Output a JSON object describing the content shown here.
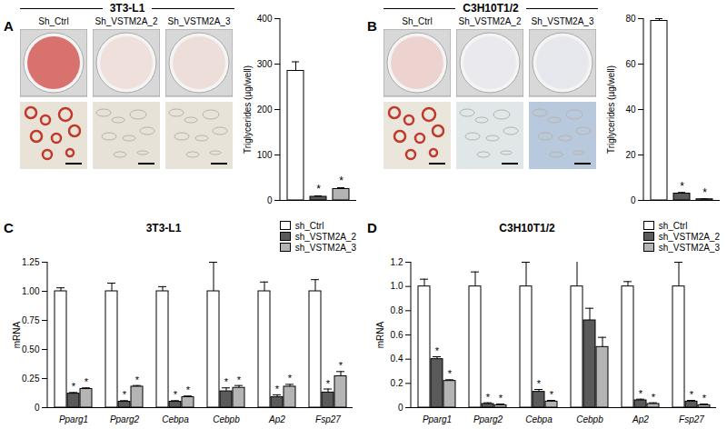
{
  "chart_data": [
    {
      "type": "bar",
      "panel_label": "A",
      "title": "3T3-L1",
      "image_labels": [
        "Sh_Ctrl",
        "Sh_VSTM2A_2",
        "Sh_VSTM2A_3"
      ],
      "y_label": "Triglycerides (µg/well)",
      "categories": [
        null,
        null,
        null
      ],
      "values": [
        285,
        8,
        25
      ],
      "errors": [
        20,
        2,
        3
      ],
      "annotations": [
        null,
        "*",
        "*"
      ],
      "colors": [
        "#ffffff",
        "#5a5a5a",
        "#b4b4b4"
      ],
      "ylim": [
        0,
        400
      ],
      "yticks": [
        0,
        100,
        200,
        300,
        400
      ],
      "tick_labels": "y"
    },
    {
      "type": "bar",
      "panel_label": "B",
      "title": "C3H10T1/2",
      "image_labels": [
        "Sh_Ctrl",
        "Sh_VSTM2A_2",
        "Sh_VSTM2A_3"
      ],
      "y_label": "Triglycerides (µg/well)",
      "categories": [
        null,
        null,
        null
      ],
      "values": [
        79,
        3,
        0.5
      ],
      "errors": [
        1,
        0.5,
        0.2
      ],
      "annotations": [
        null,
        "*",
        "*"
      ],
      "colors": [
        "#ffffff",
        "#5a5a5a",
        "#b4b4b4"
      ],
      "ylim": [
        0,
        80
      ],
      "yticks": [
        0,
        20,
        40,
        60,
        80
      ],
      "tick_labels": "y"
    },
    {
      "type": "bar",
      "panel_label": "C",
      "title": "3T3-L1",
      "y_label": "mRNA",
      "categories": [
        "Pparg1",
        "Pparg2",
        "Cebpa",
        "Cebpb",
        "Ap2",
        "Fsp27"
      ],
      "series": [
        {
          "name": "sh_Ctrl",
          "color": "#ffffff",
          "values": [
            1,
            1,
            1,
            1,
            1,
            1
          ],
          "errors": [
            0.03,
            0.07,
            0.04,
            0.25,
            0.08,
            0.1
          ],
          "annotations": [
            null,
            null,
            null,
            null,
            null,
            null
          ]
        },
        {
          "name": "sh_VSTM2A_2",
          "color": "#5a5a5a",
          "values": [
            0.12,
            0.05,
            0.05,
            0.14,
            0.09,
            0.13
          ],
          "errors": [
            0.01,
            0.01,
            0.01,
            0.03,
            0.02,
            0.03
          ],
          "annotations": [
            "*",
            "*",
            "*",
            "*",
            "*",
            "*"
          ]
        },
        {
          "name": "sh_VSTM2A_3",
          "color": "#b4b4b4",
          "values": [
            0.16,
            0.18,
            0.09,
            0.17,
            0.18,
            0.27
          ],
          "errors": [
            0.01,
            0.01,
            0.01,
            0.02,
            0.02,
            0.04
          ],
          "annotations": [
            "*",
            "*",
            "*",
            "*",
            "*",
            "*"
          ]
        }
      ],
      "ylim": [
        0,
        1.25
      ],
      "yticks": [
        0,
        0.25,
        {
          "value": 0.5,
          "label": "0.50"
        },
        0.75,
        {
          "value": 1,
          "label": "1.00"
        },
        1.25
      ],
      "legend": "top-right"
    },
    {
      "type": "bar",
      "panel_label": "D",
      "title": "C3H10T1/2",
      "y_label": "mRNA",
      "categories": [
        "Pparg1",
        "Pparg2",
        "Cebpa",
        "Cebpb",
        "Ap2",
        "Fsp27"
      ],
      "series": [
        {
          "name": "sh_Ctrl",
          "color": "#ffffff",
          "values": [
            1,
            1,
            1,
            1,
            1,
            1
          ],
          "errors": [
            0.06,
            0.12,
            0.2,
            0.3,
            0.04,
            0.2
          ],
          "annotations": [
            null,
            null,
            null,
            null,
            null,
            null
          ]
        },
        {
          "name": "sh_VSTM2A_2",
          "color": "#5a5a5a",
          "values": [
            0.4,
            0.03,
            0.13,
            0.72,
            0.06,
            0.05
          ],
          "errors": [
            0.02,
            0.01,
            0.02,
            0.1,
            0.01,
            0.01
          ],
          "annotations": [
            "*",
            "*",
            "*",
            null,
            "*",
            "*"
          ]
        },
        {
          "name": "sh_VSTM2A_3",
          "color": "#b4b4b4",
          "values": [
            0.22,
            0.02,
            0.05,
            0.5,
            0.03,
            0.02
          ],
          "errors": [
            0.01,
            0.01,
            0.01,
            0.08,
            0.01,
            0.01
          ],
          "annotations": [
            "*",
            "*",
            "*",
            null,
            "*",
            "*"
          ]
        }
      ],
      "ylim": [
        0,
        1.2
      ],
      "yticks": [
        0,
        0.2,
        0.4,
        0.6,
        0.8,
        {
          "value": 1,
          "label": "1.0"
        },
        1.2
      ],
      "legend": "top-right"
    }
  ]
}
